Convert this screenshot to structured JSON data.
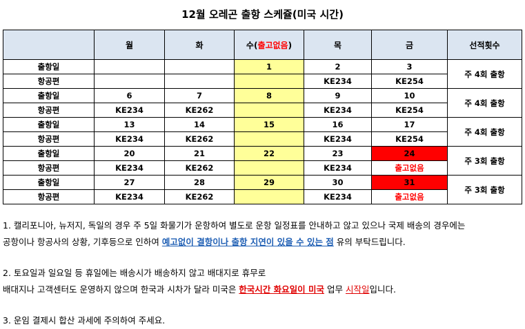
{
  "title": "12월 오레곤 출항 스케쥴(미국 시간)",
  "headers": {
    "blank": "",
    "mon": "월",
    "tue": "화",
    "wed_prefix": "수(",
    "wed_red": "출고없음",
    "wed_suffix": ")",
    "thu": "목",
    "fri": "금",
    "count": "선적횟수"
  },
  "labels": {
    "date": "출항일",
    "flight": "항공편"
  },
  "weeks": [
    {
      "dates": [
        "",
        "",
        "1",
        "2",
        "3"
      ],
      "flights": [
        "",
        "",
        "",
        "KE234",
        "KE254"
      ],
      "count": "주 4회 출항"
    },
    {
      "dates": [
        "6",
        "7",
        "8",
        "9",
        "10"
      ],
      "flights": [
        "KE234",
        "KE262",
        "",
        "KE234",
        "KE254"
      ],
      "count": "주 4회 출항"
    },
    {
      "dates": [
        "13",
        "14",
        "15",
        "16",
        "17"
      ],
      "flights": [
        "KE234",
        "KE262",
        "",
        "KE234",
        "KE254"
      ],
      "count": "주 4회 출항"
    },
    {
      "dates": [
        "20",
        "21",
        "22",
        "23",
        "24"
      ],
      "flights": [
        "KE234",
        "KE262",
        "",
        "KE234",
        "출고없음"
      ],
      "count": "주 3회 출항"
    },
    {
      "dates": [
        "27",
        "28",
        "29",
        "30",
        "31"
      ],
      "flights": [
        "KE234",
        "KE262",
        "",
        "KE234",
        "출고없음"
      ],
      "count": "주 3회 출항"
    }
  ],
  "notes": {
    "n1_line1": "1. 캘리포니아, 뉴저지, 독일의 경우 주 5일 화물기가 운항하여 별도로 운항 일정표를 안내하고 않고 있으나 국제 배송의 경우에는",
    "n1_line2_a": "공항이나 항공사의 상황, 기후등으로 인하여 ",
    "n1_line2_b": "예고없이 결항이나 출항 지연이 있을 수 있는 점",
    "n1_line2_c": " 유의 부탁드립니다.",
    "n2_line1": "2. 토요일과 일요일 등 휴일에는 배송시가 배송하지 않고 배대지로 휴무로",
    "n2_line2_a": "배대지나 고객센터도 운영하지 않으며 한국과 시차가 달라 미국은 ",
    "n2_line2_b": "한국시간 화요일이 미국",
    "n2_line2_c": " 업무 ",
    "n2_line2_d": "시작일",
    "n2_line2_e": "입니다.",
    "n3": "3. 운임 결제시 합산 과세에 주의하여 주세요."
  },
  "colors": {
    "header_bg": "#dbe5f1",
    "wed_bg": "#ffff99",
    "red": "#ff0000",
    "blue": "#1f5fb4"
  }
}
